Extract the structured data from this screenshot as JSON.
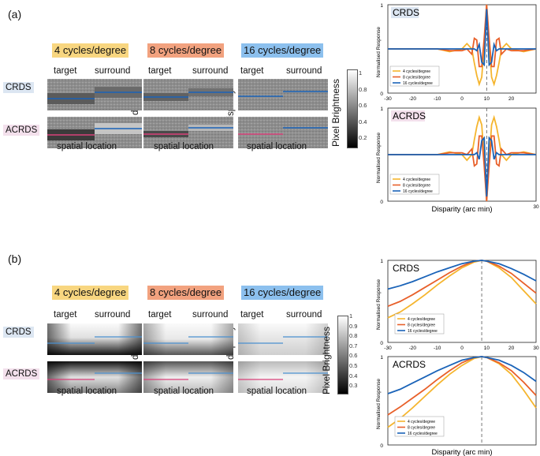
{
  "panel_a": {
    "letter": "(a)",
    "freqs": [
      "4 cycles/degree",
      "8 cycles/degree",
      "16 cycles/degree"
    ],
    "col_labels": [
      "target",
      "surround"
    ],
    "row_labels": [
      "CRDS",
      "ACRDS"
    ],
    "axis_disparity": "disparity",
    "axis_spatial": "spatial location",
    "colorbar_label": "Pixel Brightness",
    "colorbar_ticks": [
      "1",
      "0.8",
      "0.6",
      "0.4",
      "0.2"
    ]
  },
  "panel_b": {
    "letter": "(b)",
    "freqs": [
      "4 cycles/degree",
      "8 cycles/degree",
      "16 cycles/degree"
    ],
    "col_labels": [
      "target",
      "surround"
    ],
    "row_labels": [
      "CRDS",
      "ACRDS"
    ],
    "axis_disparity": "disparity",
    "axis_spatial": "spatial location",
    "colorbar_label": "Pixel Brightness",
    "colorbar_ticks": [
      "1",
      "0.9",
      "0.8",
      "0.7",
      "0.6",
      "0.5",
      "0.4",
      "0.3"
    ]
  },
  "colors": {
    "freq4": "#f5b52e",
    "freq8": "#e8602a",
    "freq16": "#1a63b8",
    "freq4_bg": "#f8d680",
    "freq8_bg": "#f2a27f",
    "freq16_bg": "#8cc0ee",
    "crds_bg": "#dce6f2",
    "acrds_bg": "#f3e0ec"
  },
  "chart_data": [
    {
      "type": "line",
      "title": "CRDS",
      "xlabel": "",
      "ylabel": "Normalised Response",
      "xlim": [
        -30,
        30
      ],
      "ylim": [
        0,
        1
      ],
      "xticks": [
        "-30",
        "-20",
        "-10",
        "0",
        "10",
        "20"
      ],
      "yticks": [
        "0",
        "1"
      ],
      "reference_line_x": 10,
      "legend": [
        "4 cycles/degree",
        "8 cycles/degree",
        "16 cycles/degree"
      ],
      "x": [
        -30,
        -20,
        -10,
        -5,
        0,
        2,
        4,
        5,
        6,
        7,
        8,
        9,
        10,
        11,
        12,
        13,
        14,
        15,
        16,
        18,
        20,
        25,
        30
      ],
      "series": [
        {
          "name": "4 cycles/degree",
          "values": [
            0.5,
            0.5,
            0.5,
            0.47,
            0.5,
            0.56,
            0.5,
            0.34,
            0.2,
            0.1,
            0.18,
            0.55,
            1.0,
            0.55,
            0.18,
            0.1,
            0.2,
            0.34,
            0.5,
            0.56,
            0.5,
            0.47,
            0.5
          ]
        },
        {
          "name": "8 cycles/degree",
          "values": [
            0.5,
            0.5,
            0.5,
            0.48,
            0.48,
            0.5,
            0.44,
            0.62,
            0.6,
            0.3,
            0.3,
            0.62,
            1.0,
            0.62,
            0.3,
            0.3,
            0.6,
            0.62,
            0.44,
            0.5,
            0.48,
            0.48,
            0.5
          ]
        },
        {
          "name": "16 cycles/degree",
          "values": [
            0.5,
            0.5,
            0.5,
            0.5,
            0.5,
            0.5,
            0.5,
            0.5,
            0.48,
            0.55,
            0.35,
            0.32,
            0.95,
            0.32,
            0.35,
            0.55,
            0.48,
            0.5,
            0.5,
            0.5,
            0.5,
            0.5,
            0.5
          ]
        }
      ]
    },
    {
      "type": "line",
      "title": "ACRDS",
      "xlabel": "Disparity (arc min)",
      "ylabel": "Normalised Response",
      "xlim": [
        -30,
        30
      ],
      "ylim": [
        0,
        1
      ],
      "xticks": [
        "30"
      ],
      "yticks": [
        "0",
        "1"
      ],
      "reference_line_x": 10,
      "legend": [
        "4 cycles/degree",
        "8 cycles/degree",
        "16 cycles/degree"
      ],
      "x": [
        -30,
        -20,
        -10,
        -5,
        0,
        2,
        4,
        5,
        6,
        7,
        8,
        9,
        10,
        11,
        12,
        13,
        14,
        15,
        16,
        18,
        20,
        25,
        30
      ],
      "series": [
        {
          "name": "4 cycles/degree",
          "values": [
            0.5,
            0.5,
            0.5,
            0.53,
            0.5,
            0.44,
            0.5,
            0.66,
            0.8,
            0.9,
            0.82,
            0.45,
            0.0,
            0.45,
            0.82,
            0.9,
            0.8,
            0.66,
            0.5,
            0.44,
            0.5,
            0.53,
            0.5
          ]
        },
        {
          "name": "8 cycles/degree",
          "values": [
            0.5,
            0.5,
            0.5,
            0.52,
            0.52,
            0.5,
            0.56,
            0.38,
            0.4,
            0.7,
            0.7,
            0.38,
            0.0,
            0.38,
            0.7,
            0.7,
            0.4,
            0.38,
            0.56,
            0.5,
            0.52,
            0.52,
            0.5
          ]
        },
        {
          "name": "16 cycles/degree",
          "values": [
            0.5,
            0.5,
            0.5,
            0.5,
            0.5,
            0.5,
            0.5,
            0.5,
            0.52,
            0.45,
            0.65,
            0.68,
            0.05,
            0.68,
            0.65,
            0.45,
            0.52,
            0.5,
            0.5,
            0.5,
            0.5,
            0.5,
            0.5
          ]
        }
      ]
    },
    {
      "type": "line",
      "title": "CRDS",
      "xlabel": "",
      "ylabel": "Normalised Response",
      "xlim": [
        -30,
        30
      ],
      "ylim": [
        0,
        1
      ],
      "xticks": [
        "-30",
        "-20",
        "-10",
        "0",
        "10",
        "20",
        "30"
      ],
      "yticks": [
        "0",
        "1"
      ],
      "reference_line_x": 8,
      "legend": [
        "4 cycles/degree",
        "8 cycles/degree",
        "16 cycles/degree"
      ],
      "x": [
        -30,
        -25,
        -20,
        -15,
        -10,
        -5,
        0,
        5,
        8,
        10,
        15,
        20,
        25,
        30
      ],
      "series": [
        {
          "name": "4 cycles/degree",
          "values": [
            0.3,
            0.37,
            0.47,
            0.58,
            0.7,
            0.81,
            0.91,
            0.98,
            1.0,
            0.99,
            0.91,
            0.79,
            0.63,
            0.47
          ]
        },
        {
          "name": "8 cycles/degree",
          "values": [
            0.44,
            0.5,
            0.58,
            0.67,
            0.76,
            0.85,
            0.93,
            0.99,
            1.0,
            0.99,
            0.93,
            0.84,
            0.72,
            0.6
          ]
        },
        {
          "name": "16 cycles/degree",
          "values": [
            0.65,
            0.69,
            0.74,
            0.8,
            0.86,
            0.91,
            0.96,
            0.99,
            1.0,
            0.99,
            0.96,
            0.9,
            0.83,
            0.75
          ]
        }
      ]
    },
    {
      "type": "line",
      "title": "ACRDS",
      "xlabel": "Disparity (arc min)",
      "ylabel": "Normalised Response",
      "xlim": [
        -30,
        30
      ],
      "ylim": [
        0,
        1
      ],
      "xticks": [],
      "yticks": [
        "0",
        "1"
      ],
      "reference_line_x": 8,
      "legend": [
        "4 cycles/degree",
        "8 cycles/degree",
        "16 cycles/degree"
      ],
      "x": [
        -30,
        -25,
        -20,
        -15,
        -10,
        -5,
        0,
        5,
        8,
        10,
        15,
        20,
        25,
        30
      ],
      "series": [
        {
          "name": "4 cycles/degree",
          "values": [
            0.2,
            0.3,
            0.42,
            0.55,
            0.68,
            0.8,
            0.9,
            0.98,
            1.0,
            0.99,
            0.92,
            0.8,
            0.62,
            0.42
          ]
        },
        {
          "name": "8 cycles/degree",
          "values": [
            0.34,
            0.43,
            0.53,
            0.63,
            0.74,
            0.84,
            0.93,
            0.99,
            1.0,
            0.99,
            0.93,
            0.84,
            0.71,
            0.56
          ]
        },
        {
          "name": "16 cycles/degree",
          "values": [
            0.58,
            0.63,
            0.7,
            0.77,
            0.84,
            0.9,
            0.96,
            0.99,
            1.0,
            0.99,
            0.96,
            0.9,
            0.82,
            0.72
          ]
        }
      ]
    }
  ]
}
